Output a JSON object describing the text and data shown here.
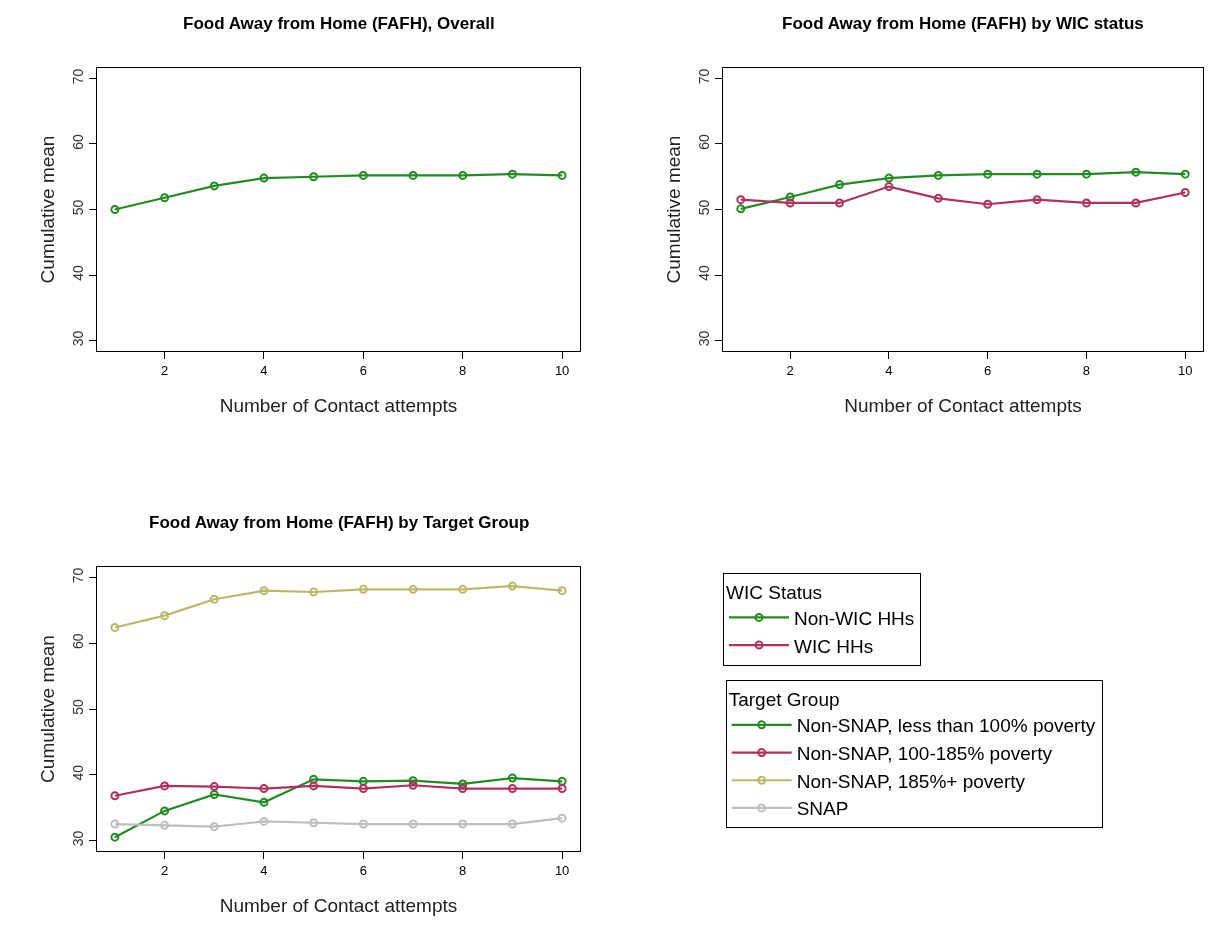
{
  "chart_data": [
    {
      "type": "line",
      "title": "Food Away from Home (FAFH), Overall",
      "xlabel": "Number of Contact attempts",
      "ylabel": "Cumulative mean",
      "x": [
        1,
        2,
        3,
        4,
        5,
        6,
        7,
        8,
        9,
        10
      ],
      "xlim": [
        0.64,
        10.36
      ],
      "xticks": [
        2,
        4,
        6,
        8,
        10
      ],
      "ylim": [
        28.4,
        71.6
      ],
      "yticks": [
        30,
        40,
        50,
        60,
        70
      ],
      "marker": "circle",
      "line_style": "solid",
      "series": [
        {
          "color": "#228b22",
          "values": [
            50.0,
            51.8,
            53.6,
            54.8,
            55.0,
            55.2,
            55.2,
            55.2,
            55.4,
            55.2
          ]
        }
      ]
    },
    {
      "type": "line",
      "title": "Food Away from Home (FAFH) by WIC status",
      "xlabel": "Number of Contact attempts",
      "ylabel": "Cumulative mean",
      "x": [
        1,
        2,
        3,
        4,
        5,
        6,
        7,
        8,
        9,
        10
      ],
      "xlim": [
        0.64,
        10.36
      ],
      "xticks": [
        2,
        4,
        6,
        8,
        10
      ],
      "ylim": [
        28.4,
        71.6
      ],
      "yticks": [
        30,
        40,
        50,
        60,
        70
      ],
      "marker": "circle",
      "line_style": "solid",
      "legend": "bottom",
      "legend_title": "WIC Status",
      "series": [
        {
          "name": "Non-WIC HHs",
          "color": "#228b22",
          "values": [
            50.1,
            51.9,
            53.8,
            54.8,
            55.2,
            55.4,
            55.4,
            55.4,
            55.7,
            55.4
          ]
        },
        {
          "name": "WIC HHs",
          "color": "#b03060",
          "values": [
            51.5,
            51.0,
            51.0,
            53.5,
            51.7,
            50.8,
            51.5,
            51.0,
            51.0,
            52.6
          ]
        }
      ]
    },
    {
      "type": "line",
      "title": "Food Away from Home (FAFH) by Target Group",
      "xlabel": "Number of Contact attempts",
      "ylabel": "Cumulative mean",
      "x": [
        1,
        2,
        3,
        4,
        5,
        6,
        7,
        8,
        9,
        10
      ],
      "xlim": [
        0.64,
        10.36
      ],
      "xticks": [
        2,
        4,
        6,
        8,
        10
      ],
      "ylim": [
        28.4,
        71.6
      ],
      "yticks": [
        30,
        40,
        50,
        60,
        70
      ],
      "marker": "circle",
      "line_style": "solid",
      "legend": "right",
      "legend_title": "Target Group",
      "series": [
        {
          "name": "Non-SNAP, less than 100% poverty",
          "color": "#228b22",
          "values": [
            30.5,
            34.5,
            37.0,
            35.8,
            39.3,
            39.0,
            39.1,
            38.6,
            39.5,
            39.0
          ]
        },
        {
          "name": "Non-SNAP, 100-185% poverty",
          "color": "#b03060",
          "values": [
            36.8,
            38.3,
            38.2,
            37.9,
            38.3,
            37.9,
            38.4,
            37.9,
            37.9,
            37.9
          ]
        },
        {
          "name": "Non-SNAP, 185%+ poverty",
          "color": "#bdb76b",
          "values": [
            62.4,
            64.2,
            66.7,
            68.0,
            67.8,
            68.2,
            68.2,
            68.2,
            68.7,
            68.0
          ]
        },
        {
          "name": "SNAP",
          "color": "#bebebe",
          "values": [
            32.5,
            32.3,
            32.1,
            32.9,
            32.7,
            32.5,
            32.5,
            32.5,
            32.5,
            33.4
          ]
        }
      ]
    }
  ]
}
